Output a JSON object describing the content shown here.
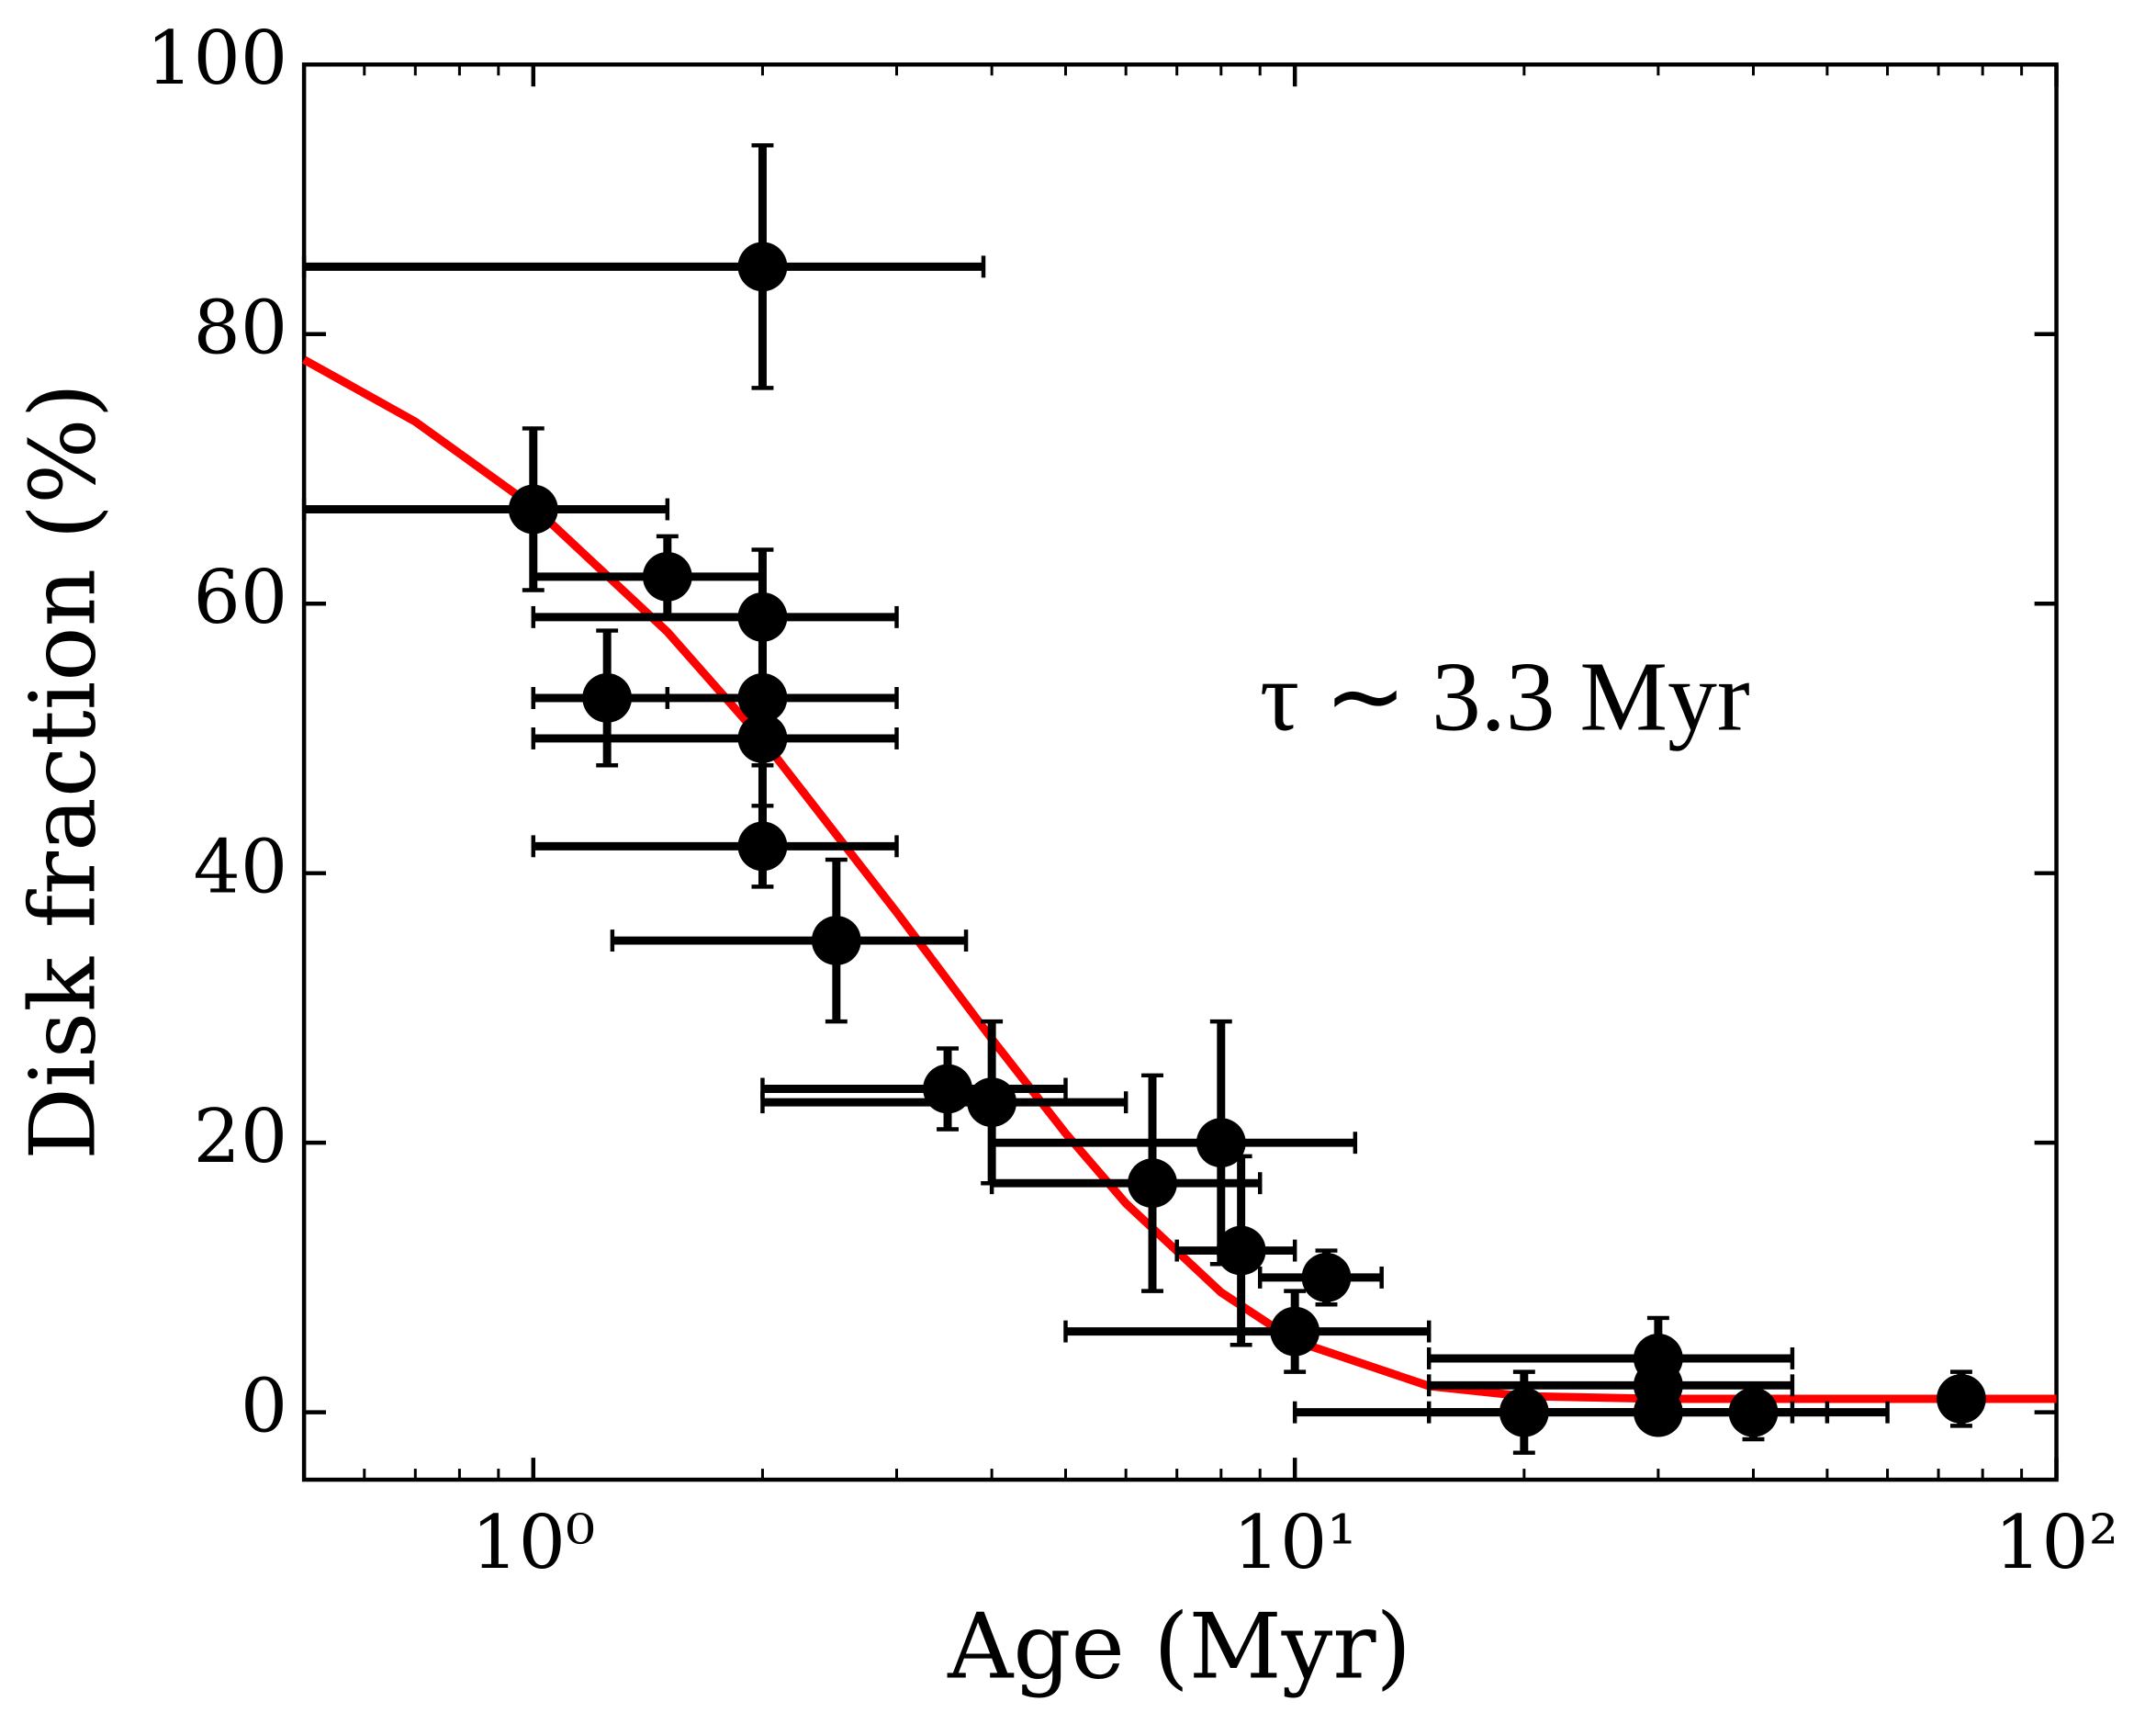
{
  "chart_data": {
    "type": "scatter",
    "x_label": "Age (Myr)",
    "y_label": "Disk fraction (%)",
    "annotation": "τ ∼ 3.3 Myr",
    "annotation_color": "#ff0000",
    "xscale": "log",
    "xlim": [
      0.5,
      100
    ],
    "ylim": [
      -5,
      100
    ],
    "xticks": [
      {
        "value": 1,
        "label": "10⁰"
      },
      {
        "value": 10,
        "label": "10¹"
      },
      {
        "value": 100,
        "label": "10²"
      }
    ],
    "xticks_minor": [
      0.5,
      0.6,
      0.7,
      0.8,
      0.9,
      2,
      3,
      4,
      5,
      6,
      7,
      8,
      9,
      20,
      30,
      40,
      50,
      60,
      70,
      80,
      90
    ],
    "yticks": [
      0,
      20,
      40,
      60,
      80,
      100
    ],
    "color": "#000000",
    "x": [
      2,
      1,
      1.5,
      2,
      1.25,
      2,
      2,
      2,
      2.5,
      3.5,
      4,
      6.5,
      8,
      8.5,
      11,
      10,
      20,
      30,
      30,
      30,
      40,
      75
    ],
    "y": [
      85,
      67,
      62,
      59,
      53,
      53,
      50,
      42,
      35,
      24,
      23,
      17,
      20,
      12,
      10,
      6,
      0,
      4,
      2,
      0,
      0,
      1
    ],
    "yerr": [
      9,
      6,
      3,
      5,
      5,
      5,
      8,
      3,
      6,
      3,
      6,
      8,
      9,
      7,
      2,
      3,
      3,
      3,
      2,
      1,
      2,
      2
    ],
    "xmin": [
      0.5,
      0.5,
      1,
      1,
      1,
      1,
      1,
      1,
      1.27,
      2,
      2,
      4,
      4,
      7,
      9,
      5,
      10,
      15,
      15,
      15,
      30,
      null
    ],
    "xmax": [
      3.9,
      1.5,
      2,
      3,
      1.5,
      3,
      3,
      3,
      3.7,
      5,
      6,
      9,
      12,
      10,
      13,
      15,
      60,
      45,
      45,
      45,
      50,
      null
    ],
    "fit": {
      "color": "#ff0000",
      "x": [
        0.5,
        0.7,
        1,
        1.5,
        2,
        3,
        4,
        5,
        6,
        8,
        10,
        15,
        20,
        30,
        50,
        100
      ],
      "y": [
        78.1,
        73.5,
        67.2,
        57.9,
        49.9,
        37.1,
        27.7,
        20.7,
        15.5,
        8.9,
        5.3,
        1.95,
        1.2,
        1.0,
        1.0,
        1.0
      ]
    }
  }
}
